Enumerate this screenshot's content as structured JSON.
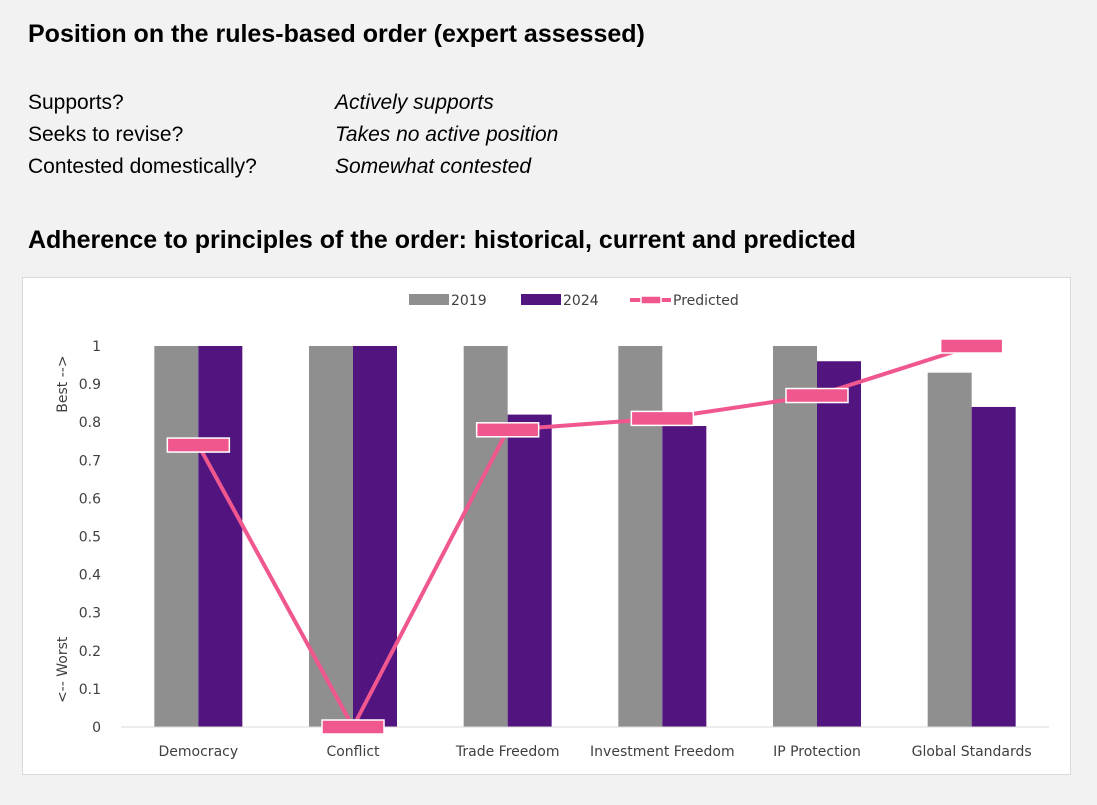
{
  "heading_position": "Position on the rules-based order (expert assessed)",
  "position": [
    {
      "question": "Supports?",
      "answer": "Actively supports"
    },
    {
      "question": "Seeks to revise?",
      "answer": "Takes no active position"
    },
    {
      "question": "Contested domestically?",
      "answer": "Somewhat contested"
    }
  ],
  "heading_adherence": "Adherence to principles of the order: historical, current and predicted",
  "chart_data": {
    "type": "bar",
    "categories": [
      "Democracy",
      "Conflict",
      "Trade Freedom",
      "Investment Freedom",
      "IP Protection",
      "Global Standards"
    ],
    "series": [
      {
        "name": "2019",
        "type": "bar",
        "color": "#8f8f8f",
        "values": [
          1,
          1,
          1,
          1,
          1,
          0.93
        ]
      },
      {
        "name": "2024",
        "type": "bar",
        "color": "#521580",
        "values": [
          1,
          1,
          0.82,
          0.79,
          0.96,
          0.84
        ]
      },
      {
        "name": "Predicted",
        "type": "line",
        "color": "#f0578f",
        "values": [
          0.74,
          0.0,
          0.78,
          0.81,
          0.87,
          1.0
        ]
      }
    ],
    "ylim": [
      0,
      1
    ],
    "yticks": [
      "0",
      "0.1",
      "0.2",
      "0.3",
      "0.4",
      "0.5",
      "0.6",
      "0.7",
      "0.8",
      "0.9",
      "1"
    ],
    "ylabel_top": "Best -->",
    "ylabel_bottom": "<-- Worst",
    "legend_position": "top-center",
    "grid": false
  }
}
